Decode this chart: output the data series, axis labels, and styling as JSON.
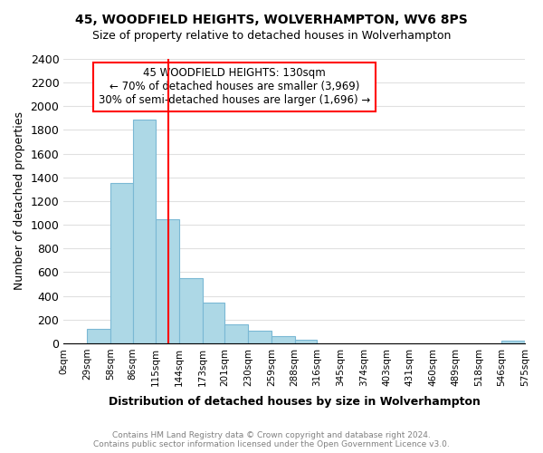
{
  "title": "45, WOODFIELD HEIGHTS, WOLVERHAMPTON, WV6 8PS",
  "subtitle": "Size of property relative to detached houses in Wolverhampton",
  "xlabel": "Distribution of detached houses by size in Wolverhampton",
  "ylabel": "Number of detached properties",
  "bin_labels": [
    "0sqm",
    "29sqm",
    "58sqm",
    "86sqm",
    "115sqm",
    "144sqm",
    "173sqm",
    "201sqm",
    "230sqm",
    "259sqm",
    "288sqm",
    "316sqm",
    "345sqm",
    "374sqm",
    "403sqm",
    "431sqm",
    "460sqm",
    "489sqm",
    "518sqm",
    "546sqm",
    "575sqm"
  ],
  "bin_edges": [
    0,
    29,
    58,
    86,
    115,
    144,
    173,
    201,
    230,
    259,
    288,
    316,
    345,
    374,
    403,
    431,
    460,
    489,
    518,
    546,
    575
  ],
  "bar_heights": [
    0,
    125,
    1350,
    1890,
    1050,
    550,
    340,
    160,
    105,
    60,
    30,
    0,
    0,
    0,
    0,
    0,
    0,
    0,
    0,
    20
  ],
  "bar_color": "#add8e6",
  "bar_edgecolor": "#7ab8d4",
  "vline_x": 130,
  "vline_color": "red",
  "ylim": [
    0,
    2400
  ],
  "yticks": [
    0,
    200,
    400,
    600,
    800,
    1000,
    1200,
    1400,
    1600,
    1800,
    2000,
    2200,
    2400
  ],
  "annotation_title": "45 WOODFIELD HEIGHTS: 130sqm",
  "annotation_line1": "← 70% of detached houses are smaller (3,969)",
  "annotation_line2": "30% of semi-detached houses are larger (1,696) →",
  "footer1": "Contains HM Land Registry data © Crown copyright and database right 2024.",
  "footer2": "Contains public sector information licensed under the Open Government Licence v3.0.",
  "bg_color": "#ffffff",
  "grid_color": "#e0e0e0"
}
